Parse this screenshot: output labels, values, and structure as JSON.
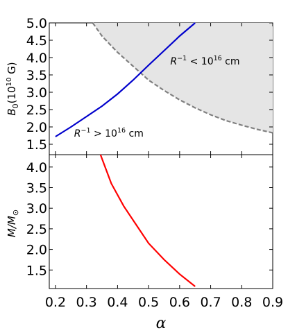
{
  "chart_data": [
    {
      "type": "line",
      "ylabel_main": "B",
      "ylabel_sub": "0",
      "ylabel_unit_pre": "(10",
      "ylabel_unit_exp": "10",
      "ylabel_unit_post": " G)",
      "xlim": [
        0.18,
        0.9
      ],
      "ylim": [
        1.2,
        5.0
      ],
      "yticks": [
        "1.5",
        "2.0",
        "2.5",
        "3.0",
        "3.5",
        "4.0",
        "4.5",
        "5.0"
      ],
      "grid": false,
      "shaded_region": {
        "fill": "#e5e5e5",
        "boundary_color": "#808080",
        "boundary_style": "dashed",
        "boundary": {
          "x": [
            0.32,
            0.35,
            0.4,
            0.45,
            0.5,
            0.55,
            0.6,
            0.65,
            0.7,
            0.75,
            0.8,
            0.85,
            0.9
          ],
          "y": [
            5.0,
            4.62,
            4.15,
            3.75,
            3.35,
            3.05,
            2.78,
            2.55,
            2.35,
            2.18,
            2.05,
            1.93,
            1.83
          ]
        }
      },
      "series": [
        {
          "color": "#0000cc",
          "x": [
            0.2,
            0.25,
            0.3,
            0.35,
            0.4,
            0.45,
            0.5,
            0.55,
            0.6,
            0.65
          ],
          "y": [
            1.72,
            2.0,
            2.3,
            2.6,
            2.95,
            3.35,
            3.78,
            4.2,
            4.62,
            5.0
          ]
        }
      ],
      "annotations": [
        {
          "id": "lt",
          "pre": "R",
          "sup": "−1",
          "mid": " < 10",
          "sup2": "16",
          "post": " cm",
          "x": 0.57,
          "y": 3.8
        },
        {
          "id": "gt",
          "pre": "R",
          "sup": "−1",
          "mid": " > 10",
          "sup2": "16",
          "post": " cm",
          "x": 0.26,
          "y": 1.72
        }
      ]
    },
    {
      "type": "line",
      "ylabel_main": "M/M",
      "ylabel_sub": "⊙",
      "xlim": [
        0.18,
        0.9
      ],
      "ylim": [
        1.05,
        4.3
      ],
      "yticks": [
        "1.5",
        "2.0",
        "2.5",
        "3.0",
        "3.5",
        "4.0"
      ],
      "xticks": [
        "0.2",
        "0.3",
        "0.4",
        "0.5",
        "0.6",
        "0.7",
        "0.8",
        "0.9"
      ],
      "xlabel": "α",
      "grid": false,
      "series": [
        {
          "color": "#ff0000",
          "x": [
            0.345,
            0.38,
            0.42,
            0.46,
            0.5,
            0.55,
            0.6,
            0.65
          ],
          "y": [
            4.3,
            3.6,
            3.05,
            2.6,
            2.15,
            1.75,
            1.4,
            1.1
          ]
        }
      ]
    }
  ]
}
